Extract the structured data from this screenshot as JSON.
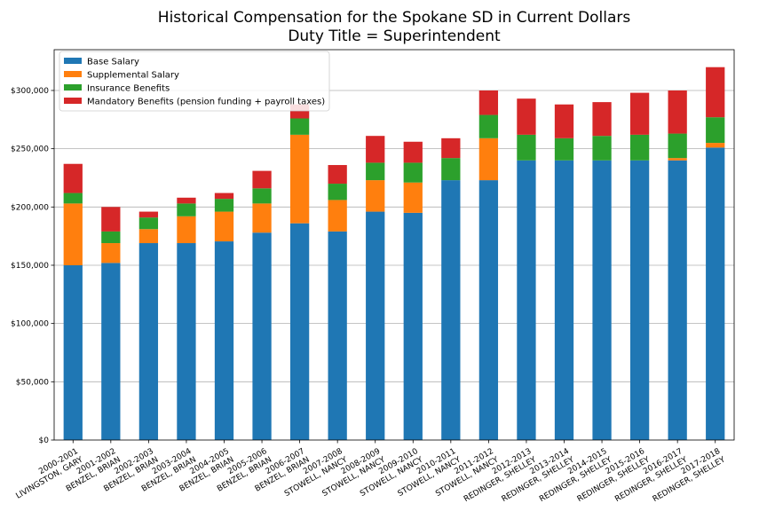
{
  "chart_data": {
    "type": "bar",
    "stacked": true,
    "title": "Historical Compensation for the Spokane SD in Current Dollars",
    "subtitle": "Duty Title = Superintendent",
    "xlabel": "",
    "ylabel": "",
    "ylim": [
      0,
      335000
    ],
    "yticks": [
      0,
      50000,
      100000,
      150000,
      200000,
      250000,
      300000
    ],
    "ytick_labels": [
      "$0",
      "$50,000",
      "$100,000",
      "$150,000",
      "$200,000",
      "$250,000",
      "$300,000"
    ],
    "grid": "horizontal",
    "legend_position": "top-left",
    "categories": [
      [
        "2000-2001",
        "LIVINGSTON, GARY"
      ],
      [
        "2001-2002",
        "BENZEL, BRIAN"
      ],
      [
        "2002-2003",
        "BENZEL, BRIAN"
      ],
      [
        "2003-2004",
        "BENZEL, BRIAN"
      ],
      [
        "2004-2005",
        "BENZEL, BRIAN"
      ],
      [
        "2005-2006",
        "BENZEL, BRIAN"
      ],
      [
        "2006-2007",
        "BENZEL, BRIAN"
      ],
      [
        "2007-2008",
        "STOWELL, NANCY"
      ],
      [
        "2008-2009",
        "STOWELL, NANCY"
      ],
      [
        "2009-2010",
        "STOWELL, NANCY"
      ],
      [
        "2010-2011",
        "STOWELL, NANCY"
      ],
      [
        "2011-2012",
        "STOWELL, NANCY"
      ],
      [
        "2012-2013",
        "REDINGER, SHELLEY"
      ],
      [
        "2013-2014",
        "REDINGER, SHELLEY"
      ],
      [
        "2014-2015",
        "REDINGER, SHELLEY"
      ],
      [
        "2015-2016",
        "REDINGER, SHELLEY"
      ],
      [
        "2016-2017",
        "REDINGER, SHELLEY"
      ],
      [
        "2017-2018",
        "REDINGER, SHELLEY"
      ]
    ],
    "series": [
      {
        "name": "Base Salary",
        "color": "#1f77b4",
        "values": [
          150000,
          152000,
          169000,
          169000,
          170500,
          178000,
          186000,
          179000,
          196000,
          195000,
          223000,
          223000,
          240000,
          240000,
          240000,
          240000,
          240000,
          251000
        ]
      },
      {
        "name": "Supplemental Salary",
        "color": "#ff7f0e",
        "values": [
          53000,
          17000,
          12000,
          23000,
          25500,
          25000,
          76000,
          27000,
          27000,
          26000,
          0,
          36000,
          0,
          0,
          0,
          0,
          2000,
          4000
        ]
      },
      {
        "name": "Insurance Benefits",
        "color": "#2ca02c",
        "values": [
          9000,
          10000,
          10000,
          11000,
          11000,
          13000,
          14000,
          14000,
          15000,
          17000,
          19000,
          20000,
          22000,
          19000,
          21000,
          22000,
          21000,
          22000
        ]
      },
      {
        "name": "Mandatory Benefits (pension funding + payroll taxes)",
        "color": "#d62728",
        "values": [
          25000,
          21000,
          5000,
          5000,
          5000,
          15000,
          12000,
          16000,
          23000,
          18000,
          17000,
          21000,
          31000,
          29000,
          29000,
          36000,
          37000,
          43000
        ]
      }
    ]
  }
}
